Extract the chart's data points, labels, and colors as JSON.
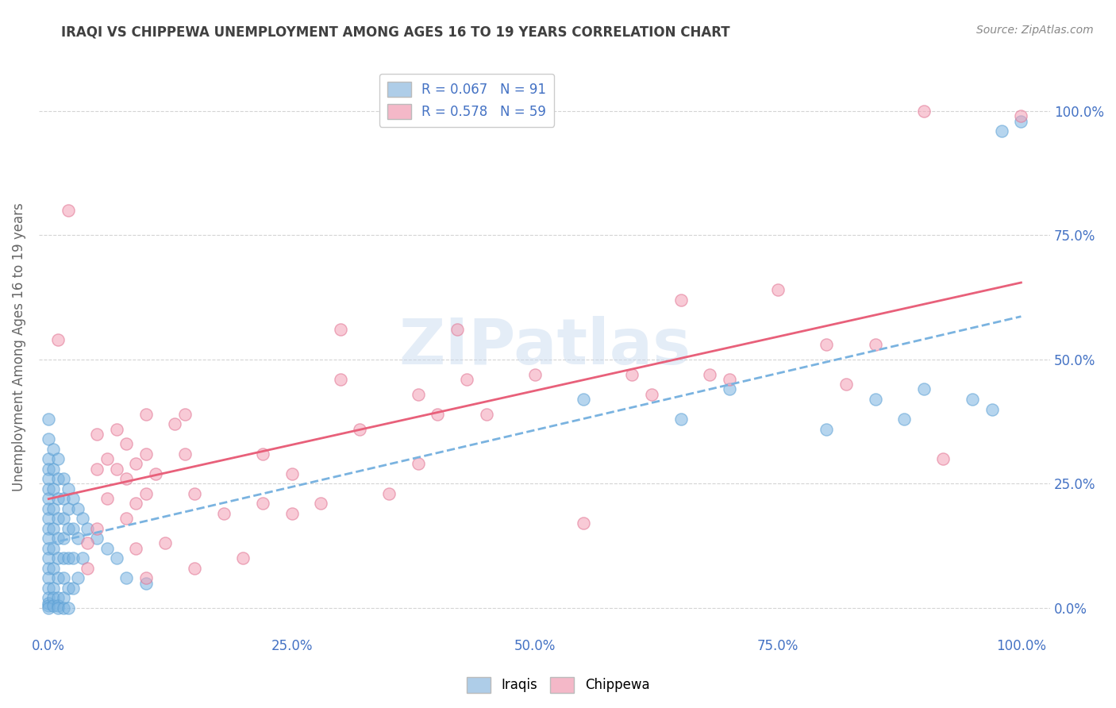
{
  "title": "IRAQI VS CHIPPEWA UNEMPLOYMENT AMONG AGES 16 TO 19 YEARS CORRELATION CHART",
  "source": "Source: ZipAtlas.com",
  "ylabel": "Unemployment Among Ages 16 to 19 years",
  "iraqis_color": "#7ab3e0",
  "iraqis_edge_color": "#5a9fd4",
  "chippewa_color": "#f4a0b5",
  "chippewa_edge_color": "#e07090",
  "line_iraqis_color": "#7ab3e0",
  "line_chippewa_color": "#e8607a",
  "legend_box_iraqis": "#aecde8",
  "legend_box_chippewa": "#f4b8c8",
  "tick_color": "#4472c4",
  "title_color": "#404040",
  "axis_label_color": "#666666",
  "grid_color": "#d0d0d0",
  "background_color": "#ffffff",
  "watermark": "ZIPatlas",
  "iraqis_scatter": [
    [
      0.0,
      0.38
    ],
    [
      0.0,
      0.34
    ],
    [
      0.0,
      0.3
    ],
    [
      0.0,
      0.28
    ],
    [
      0.0,
      0.26
    ],
    [
      0.0,
      0.24
    ],
    [
      0.0,
      0.22
    ],
    [
      0.0,
      0.2
    ],
    [
      0.0,
      0.18
    ],
    [
      0.0,
      0.16
    ],
    [
      0.0,
      0.14
    ],
    [
      0.0,
      0.12
    ],
    [
      0.0,
      0.1
    ],
    [
      0.0,
      0.08
    ],
    [
      0.0,
      0.06
    ],
    [
      0.0,
      0.04
    ],
    [
      0.0,
      0.02
    ],
    [
      0.0,
      0.01
    ],
    [
      0.0,
      0.005
    ],
    [
      0.0,
      0.0
    ],
    [
      0.005,
      0.32
    ],
    [
      0.005,
      0.28
    ],
    [
      0.005,
      0.24
    ],
    [
      0.005,
      0.2
    ],
    [
      0.005,
      0.16
    ],
    [
      0.005,
      0.12
    ],
    [
      0.005,
      0.08
    ],
    [
      0.005,
      0.04
    ],
    [
      0.005,
      0.02
    ],
    [
      0.005,
      0.005
    ],
    [
      0.01,
      0.3
    ],
    [
      0.01,
      0.26
    ],
    [
      0.01,
      0.22
    ],
    [
      0.01,
      0.18
    ],
    [
      0.01,
      0.14
    ],
    [
      0.01,
      0.1
    ],
    [
      0.01,
      0.06
    ],
    [
      0.01,
      0.02
    ],
    [
      0.01,
      0.005
    ],
    [
      0.01,
      0.0
    ],
    [
      0.015,
      0.26
    ],
    [
      0.015,
      0.22
    ],
    [
      0.015,
      0.18
    ],
    [
      0.015,
      0.14
    ],
    [
      0.015,
      0.1
    ],
    [
      0.015,
      0.06
    ],
    [
      0.015,
      0.02
    ],
    [
      0.015,
      0.0
    ],
    [
      0.02,
      0.24
    ],
    [
      0.02,
      0.2
    ],
    [
      0.02,
      0.16
    ],
    [
      0.02,
      0.1
    ],
    [
      0.02,
      0.04
    ],
    [
      0.02,
      0.0
    ],
    [
      0.025,
      0.22
    ],
    [
      0.025,
      0.16
    ],
    [
      0.025,
      0.1
    ],
    [
      0.025,
      0.04
    ],
    [
      0.03,
      0.2
    ],
    [
      0.03,
      0.14
    ],
    [
      0.03,
      0.06
    ],
    [
      0.035,
      0.18
    ],
    [
      0.035,
      0.1
    ],
    [
      0.04,
      0.16
    ],
    [
      0.05,
      0.14
    ],
    [
      0.06,
      0.12
    ],
    [
      0.07,
      0.1
    ],
    [
      0.08,
      0.06
    ],
    [
      0.1,
      0.05
    ],
    [
      0.55,
      0.42
    ],
    [
      0.65,
      0.38
    ],
    [
      0.7,
      0.44
    ],
    [
      0.8,
      0.36
    ],
    [
      0.85,
      0.42
    ],
    [
      0.88,
      0.38
    ],
    [
      0.9,
      0.44
    ],
    [
      0.95,
      0.42
    ],
    [
      0.97,
      0.4
    ],
    [
      0.98,
      0.96
    ],
    [
      1.0,
      0.98
    ]
  ],
  "chippewa_scatter": [
    [
      0.01,
      0.54
    ],
    [
      0.02,
      0.8
    ],
    [
      0.04,
      0.08
    ],
    [
      0.04,
      0.13
    ],
    [
      0.05,
      0.35
    ],
    [
      0.05,
      0.28
    ],
    [
      0.05,
      0.16
    ],
    [
      0.06,
      0.3
    ],
    [
      0.06,
      0.22
    ],
    [
      0.07,
      0.36
    ],
    [
      0.07,
      0.28
    ],
    [
      0.08,
      0.33
    ],
    [
      0.08,
      0.26
    ],
    [
      0.08,
      0.18
    ],
    [
      0.09,
      0.29
    ],
    [
      0.09,
      0.21
    ],
    [
      0.09,
      0.12
    ],
    [
      0.1,
      0.39
    ],
    [
      0.1,
      0.31
    ],
    [
      0.1,
      0.23
    ],
    [
      0.1,
      0.06
    ],
    [
      0.11,
      0.27
    ],
    [
      0.12,
      0.13
    ],
    [
      0.13,
      0.37
    ],
    [
      0.14,
      0.39
    ],
    [
      0.14,
      0.31
    ],
    [
      0.15,
      0.23
    ],
    [
      0.15,
      0.08
    ],
    [
      0.18,
      0.19
    ],
    [
      0.2,
      0.1
    ],
    [
      0.22,
      0.31
    ],
    [
      0.22,
      0.21
    ],
    [
      0.25,
      0.27
    ],
    [
      0.25,
      0.19
    ],
    [
      0.28,
      0.21
    ],
    [
      0.3,
      0.56
    ],
    [
      0.3,
      0.46
    ],
    [
      0.32,
      0.36
    ],
    [
      0.35,
      0.23
    ],
    [
      0.38,
      0.43
    ],
    [
      0.38,
      0.29
    ],
    [
      0.4,
      0.39
    ],
    [
      0.42,
      0.56
    ],
    [
      0.43,
      0.46
    ],
    [
      0.45,
      0.39
    ],
    [
      0.5,
      0.47
    ],
    [
      0.55,
      0.17
    ],
    [
      0.6,
      0.47
    ],
    [
      0.62,
      0.43
    ],
    [
      0.65,
      0.62
    ],
    [
      0.68,
      0.47
    ],
    [
      0.7,
      0.46
    ],
    [
      0.75,
      0.64
    ],
    [
      0.8,
      0.53
    ],
    [
      0.82,
      0.45
    ],
    [
      0.85,
      0.53
    ],
    [
      0.9,
      1.0
    ],
    [
      0.92,
      0.3
    ],
    [
      1.0,
      0.99
    ]
  ],
  "yticks": [
    0.0,
    0.25,
    0.5,
    0.75,
    1.0
  ],
  "xticks": [
    0.0,
    0.25,
    0.5,
    0.75,
    1.0
  ],
  "tick_labels": [
    "0.0%",
    "25.0%",
    "50.0%",
    "75.0%",
    "100.0%"
  ]
}
